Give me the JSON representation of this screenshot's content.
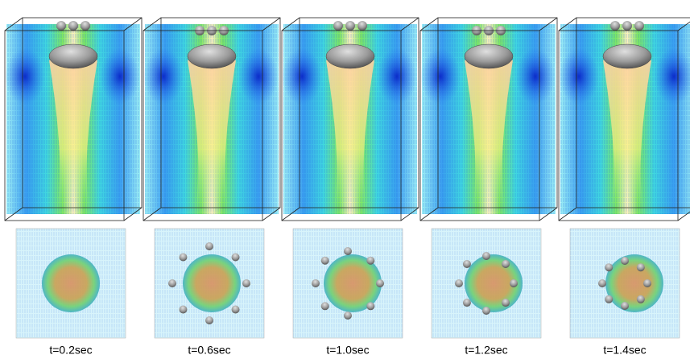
{
  "panels": [
    {
      "label": "t=0.2sec"
    },
    {
      "label": "t=0.6sec"
    },
    {
      "label": "t=1.0sec"
    },
    {
      "label": "t=1.2sec"
    },
    {
      "label": "t=1.4sec"
    }
  ]
}
